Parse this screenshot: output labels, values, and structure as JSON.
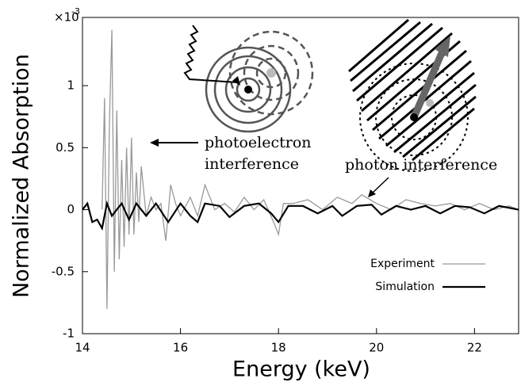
{
  "chart_data": {
    "type": "line",
    "x_label": "Energy (keV)",
    "y_label": "Normalized Absorption",
    "y_multiplier": {
      "base": "×10",
      "exponent": "-3"
    },
    "xlim": [
      14,
      22.9
    ],
    "ylim": [
      -1,
      1.55
    ],
    "xticks": [
      14,
      16,
      18,
      20,
      22
    ],
    "yticks": [
      -1,
      -0.5,
      0,
      0.5,
      1
    ],
    "legend_position": "lower right",
    "annotations": [
      {
        "lines": [
          "photoelectron",
          "interference"
        ]
      },
      {
        "lines": [
          "photon interference"
        ]
      }
    ],
    "series": [
      {
        "name": "Experiment",
        "color": "#999999",
        "x": [
          14.4,
          14.45,
          14.5,
          14.55,
          14.6,
          14.65,
          14.7,
          14.75,
          14.8,
          14.85,
          14.9,
          14.95,
          15.0,
          15.05,
          15.1,
          15.15,
          15.2,
          15.3,
          15.4,
          15.5,
          15.6,
          15.7,
          15.8,
          15.9,
          16.0,
          16.2,
          16.35,
          16.5,
          16.7,
          16.9,
          17.1,
          17.3,
          17.5,
          17.7,
          17.9,
          18.0,
          18.1,
          18.3,
          18.6,
          18.9,
          19.2,
          19.5,
          19.7,
          20.0,
          20.3,
          20.6,
          20.9,
          21.2,
          21.5,
          21.8,
          22.1,
          22.4,
          22.7,
          22.9
        ],
        "values": [
          0,
          0.9,
          -0.8,
          0.7,
          1.45,
          -0.5,
          0.8,
          -0.4,
          0.4,
          -0.3,
          0.5,
          -0.2,
          0.58,
          -0.2,
          0.3,
          -0.1,
          0.35,
          -0.05,
          0.1,
          0,
          0.05,
          -0.25,
          0.2,
          0.05,
          -0.05,
          0.1,
          -0.05,
          0.2,
          0,
          0.05,
          -0.02,
          0.1,
          0,
          0.08,
          -0.1,
          -0.2,
          0.05,
          0.05,
          0.08,
          0,
          0.1,
          0.05,
          0.12,
          0.05,
          0,
          0.08,
          0.05,
          0.03,
          0.05,
          0,
          0.05,
          0,
          0.03,
          0
        ]
      },
      {
        "name": "Simulation",
        "color": "#000000",
        "x": [
          14.0,
          14.1,
          14.2,
          14.3,
          14.4,
          14.5,
          14.6,
          14.8,
          14.95,
          15.1,
          15.3,
          15.5,
          15.75,
          16.0,
          16.2,
          16.35,
          16.5,
          16.8,
          17.0,
          17.3,
          17.6,
          17.85,
          18.0,
          18.2,
          18.5,
          18.8,
          19.1,
          19.3,
          19.6,
          19.9,
          20.1,
          20.4,
          20.7,
          21.0,
          21.3,
          21.6,
          21.9,
          22.2,
          22.5,
          22.9
        ],
        "values": [
          0,
          0.05,
          -0.1,
          -0.08,
          -0.15,
          0.05,
          -0.05,
          0.05,
          -0.08,
          0.05,
          -0.05,
          0.05,
          -0.1,
          0.05,
          -0.05,
          -0.1,
          0.05,
          0.03,
          -0.06,
          0.03,
          0.05,
          -0.03,
          -0.1,
          0.03,
          0.03,
          -0.03,
          0.03,
          -0.05,
          0.03,
          0.04,
          -0.04,
          0.03,
          0,
          0.03,
          -0.03,
          0.03,
          0.02,
          -0.03,
          0.03,
          0
        ]
      }
    ]
  }
}
